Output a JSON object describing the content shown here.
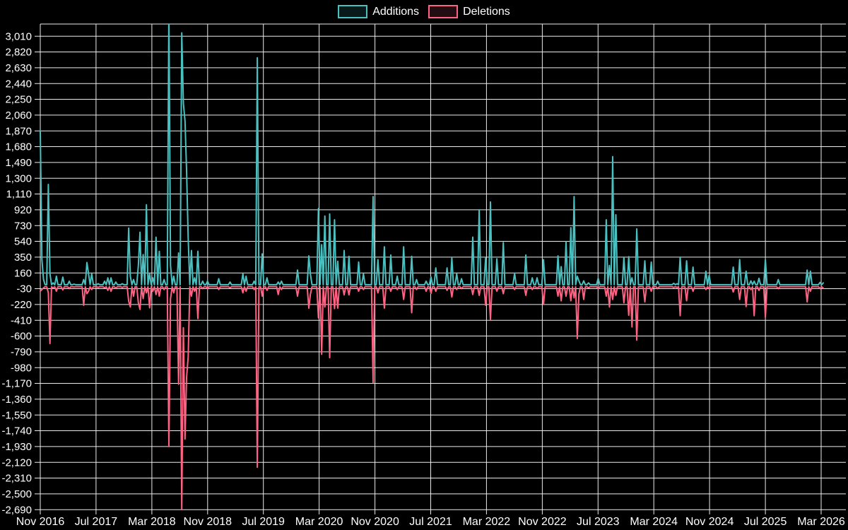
{
  "legend": {
    "items": [
      {
        "label": "Additions",
        "color": "#4bc0c0"
      },
      {
        "label": "Deletions",
        "color": "#ff6384"
      }
    ]
  },
  "chart_data": {
    "type": "line",
    "title": "",
    "xlabel": "",
    "ylabel": "",
    "background": "#000000",
    "grid": true,
    "legend_position": "top",
    "grid_color": "#ebebeb",
    "text_color": "#ffffff",
    "x_tick_labels": [
      "Nov 2016",
      "Jul 2017",
      "Mar 2018",
      "Nov 2018",
      "Jul 2019",
      "Mar 2020",
      "Nov 2020",
      "Jul 2021",
      "Mar 2022",
      "Nov 2022",
      "Jul 2023",
      "Mar 2024",
      "Nov 2024",
      "Jul 2025",
      "Mar 2026"
    ],
    "y_ticks": [
      3010,
      2820,
      2630,
      2440,
      2250,
      2060,
      1870,
      1680,
      1490,
      1300,
      1110,
      920,
      730,
      540,
      350,
      160,
      -30,
      -220,
      -410,
      -600,
      -790,
      -980,
      -1170,
      -1360,
      -1550,
      -1740,
      -1930,
      -2120,
      -2310,
      -2500,
      -2690
    ],
    "y_tick_step": 190,
    "y_axis_range": [
      -2690,
      3160
    ],
    "x_unit": "week",
    "weeks_total": 488,
    "baseline": {
      "additions": 18,
      "deletions": -6
    },
    "series": [
      {
        "name": "Additions",
        "color": "#4bc0c0"
      },
      {
        "name": "Deletions",
        "color": "#ff6384"
      }
    ],
    "points_format": [
      "week_index",
      "additions",
      "deletions"
    ],
    "points": [
      [
        0,
        1870,
        -60
      ],
      [
        1,
        320,
        -40
      ],
      [
        2,
        80,
        -20
      ],
      [
        5,
        1225,
        -80
      ],
      [
        6,
        150,
        -690
      ],
      [
        8,
        40,
        -20
      ],
      [
        10,
        120,
        -60
      ],
      [
        14,
        110,
        -45
      ],
      [
        18,
        60,
        -30
      ],
      [
        21,
        25,
        -10
      ],
      [
        27,
        80,
        -230
      ],
      [
        29,
        285,
        -90
      ],
      [
        30,
        150,
        -60
      ],
      [
        32,
        150,
        -40
      ],
      [
        36,
        30,
        -15
      ],
      [
        40,
        60,
        -20
      ],
      [
        42,
        100,
        -50
      ],
      [
        44,
        100,
        -60
      ],
      [
        47,
        50,
        -25
      ],
      [
        51,
        30,
        -15
      ],
      [
        55,
        700,
        -180
      ],
      [
        56,
        120,
        -250
      ],
      [
        58,
        80,
        -120
      ],
      [
        61,
        250,
        -200
      ],
      [
        62,
        650,
        -280
      ],
      [
        64,
        380,
        -150
      ],
      [
        66,
        980,
        -80
      ],
      [
        68,
        150,
        -260
      ],
      [
        70,
        100,
        -60
      ],
      [
        72,
        590,
        -100
      ],
      [
        74,
        420,
        -120
      ],
      [
        77,
        80,
        -40
      ],
      [
        80,
        3350,
        -1930
      ],
      [
        81,
        250,
        -150
      ],
      [
        83,
        120,
        -80
      ],
      [
        86,
        400,
        -1180
      ],
      [
        88,
        3050,
        -2690
      ],
      [
        89,
        2200,
        -500
      ],
      [
        90,
        1990,
        -1840
      ],
      [
        91,
        1400,
        -1100
      ],
      [
        92,
        580,
        -850
      ],
      [
        94,
        430,
        -120
      ],
      [
        96,
        100,
        -60
      ],
      [
        98,
        420,
        -390
      ],
      [
        101,
        60,
        -30
      ],
      [
        104,
        60,
        -30
      ],
      [
        111,
        90,
        -40
      ],
      [
        118,
        50,
        -20
      ],
      [
        126,
        150,
        -80
      ],
      [
        128,
        120,
        -60
      ],
      [
        133,
        60,
        -40
      ],
      [
        135,
        2750,
        -2180
      ],
      [
        138,
        390,
        -120
      ],
      [
        141,
        100,
        -50
      ],
      [
        148,
        50,
        -100
      ],
      [
        150,
        60,
        -40
      ],
      [
        160,
        195,
        -120
      ],
      [
        167,
        365,
        -265
      ],
      [
        168,
        150,
        -100
      ],
      [
        173,
        935,
        -380
      ],
      [
        175,
        500,
        -820
      ],
      [
        177,
        845,
        -250
      ],
      [
        180,
        870,
        -860
      ],
      [
        183,
        800,
        -270
      ],
      [
        185,
        300,
        -265
      ],
      [
        189,
        430,
        -105
      ],
      [
        192,
        360,
        -105
      ],
      [
        198,
        290,
        -60
      ],
      [
        201,
        150,
        -40
      ],
      [
        207,
        1080,
        -1160
      ],
      [
        210,
        320,
        -80
      ],
      [
        214,
        475,
        -265
      ],
      [
        218,
        375,
        -60
      ],
      [
        222,
        120,
        -40
      ],
      [
        226,
        475,
        -160
      ],
      [
        231,
        360,
        -320
      ],
      [
        234,
        80,
        -40
      ],
      [
        240,
        60,
        -60
      ],
      [
        243,
        110,
        -85
      ],
      [
        246,
        220,
        -60
      ],
      [
        253,
        220,
        -50
      ],
      [
        256,
        340,
        -130
      ],
      [
        259,
        150,
        -40
      ],
      [
        262,
        90,
        -30
      ],
      [
        269,
        590,
        -100
      ],
      [
        273,
        920,
        -110
      ],
      [
        277,
        340,
        -230
      ],
      [
        280,
        1015,
        -400
      ],
      [
        284,
        330,
        -60
      ],
      [
        288,
        525,
        -90
      ],
      [
        295,
        155,
        -40
      ],
      [
        302,
        375,
        -110
      ],
      [
        306,
        100,
        -40
      ],
      [
        309,
        100,
        -30
      ],
      [
        313,
        320,
        -220
      ],
      [
        322,
        365,
        -120
      ],
      [
        324,
        235,
        -175
      ],
      [
        327,
        535,
        -120
      ],
      [
        330,
        705,
        -175
      ],
      [
        332,
        1080,
        -140
      ],
      [
        334,
        120,
        -630
      ],
      [
        335,
        65,
        -95
      ],
      [
        338,
        65,
        -160
      ],
      [
        341,
        40,
        -20
      ],
      [
        347,
        95,
        -30
      ],
      [
        352,
        800,
        -120
      ],
      [
        354,
        250,
        -250
      ],
      [
        356,
        1560,
        -160
      ],
      [
        358,
        860,
        -110
      ],
      [
        363,
        350,
        -200
      ],
      [
        366,
        355,
        -350
      ],
      [
        368,
        100,
        -490
      ],
      [
        371,
        690,
        -650
      ],
      [
        376,
        305,
        -190
      ],
      [
        380,
        290,
        -60
      ],
      [
        384,
        60,
        -30
      ],
      [
        394,
        35,
        -15
      ],
      [
        396,
        30,
        -15
      ],
      [
        398,
        350,
        -355
      ],
      [
        402,
        305,
        -175
      ],
      [
        406,
        230,
        -60
      ],
      [
        414,
        180,
        -40
      ],
      [
        416,
        130,
        -30
      ],
      [
        431,
        230,
        -70
      ],
      [
        435,
        320,
        -160
      ],
      [
        439,
        180,
        -245
      ],
      [
        442,
        65,
        -40
      ],
      [
        444,
        60,
        -355
      ],
      [
        447,
        95,
        -50
      ],
      [
        451,
        320,
        -375
      ],
      [
        459,
        80,
        -30
      ],
      [
        477,
        195,
        -190
      ],
      [
        479,
        180,
        -60
      ],
      [
        485,
        45,
        -30
      ],
      [
        487,
        40,
        -25
      ]
    ]
  }
}
